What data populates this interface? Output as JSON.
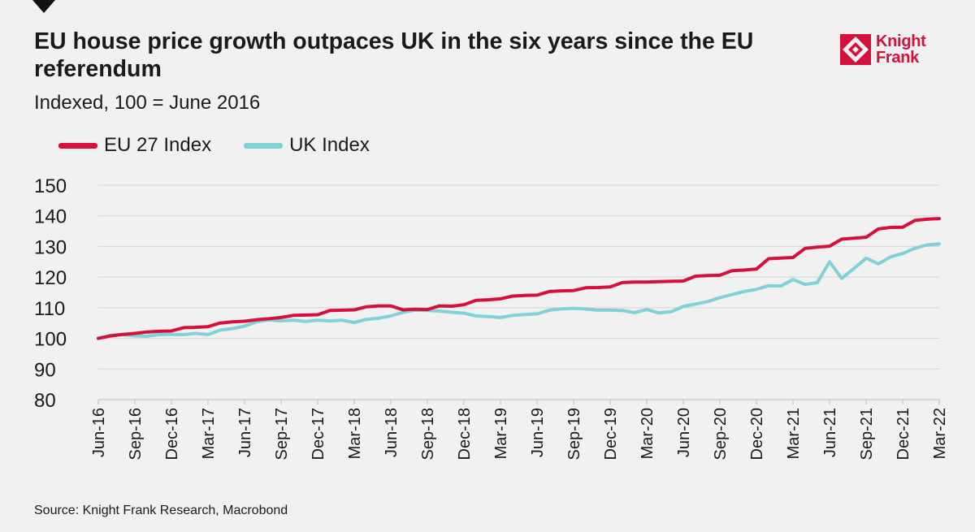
{
  "header": {
    "title": "EU house price growth outpaces UK in the six years since the EU referendum",
    "subtitle": "Indexed, 100 = June 2016"
  },
  "logo": {
    "line1": "Knight",
    "line2": "Frank",
    "color": "#d5103c"
  },
  "footer": {
    "source": "Source: Knight Frank Research, Macrobond"
  },
  "colors": {
    "background": "#f0f1f0",
    "eu": "#d5103c",
    "uk": "#7fd2d8",
    "grid": "#d4d4d4"
  },
  "chart_data": {
    "type": "line",
    "title": "EU house price growth outpaces UK in the six years since the EU referendum",
    "subtitle": "Indexed, 100 = June 2016",
    "ylim": [
      80,
      150
    ],
    "yticks": [
      80,
      90,
      100,
      110,
      120,
      130,
      140,
      150
    ],
    "grid": true,
    "legend_position": "top-left",
    "x": [
      "Jun-16",
      "Jul-16",
      "Aug-16",
      "Sep-16",
      "Oct-16",
      "Nov-16",
      "Dec-16",
      "Jan-17",
      "Feb-17",
      "Mar-17",
      "Apr-17",
      "May-17",
      "Jun-17",
      "Jul-17",
      "Aug-17",
      "Sep-17",
      "Oct-17",
      "Nov-17",
      "Dec-17",
      "Jan-18",
      "Feb-18",
      "Mar-18",
      "Apr-18",
      "May-18",
      "Jun-18",
      "Jul-18",
      "Aug-18",
      "Sep-18",
      "Oct-18",
      "Nov-18",
      "Dec-18",
      "Jan-19",
      "Feb-19",
      "Mar-19",
      "Apr-19",
      "May-19",
      "Jun-19",
      "Jul-19",
      "Aug-19",
      "Sep-19",
      "Oct-19",
      "Nov-19",
      "Dec-19",
      "Jan-20",
      "Feb-20",
      "Mar-20",
      "Apr-20",
      "May-20",
      "Jun-20",
      "Jul-20",
      "Aug-20",
      "Sep-20",
      "Oct-20",
      "Nov-20",
      "Dec-20",
      "Jan-21",
      "Feb-21",
      "Mar-21",
      "Apr-21",
      "May-21",
      "Jun-21",
      "Jul-21",
      "Aug-21",
      "Sep-21",
      "Oct-21",
      "Nov-21",
      "Dec-21",
      "Jan-22",
      "Feb-22",
      "Mar-22"
    ],
    "xtick_labels": [
      "Jun-16",
      "Sep-16",
      "Dec-16",
      "Mar-17",
      "Jun-17",
      "Sep-17",
      "Dec-17",
      "Mar-18",
      "Jun-18",
      "Sep-18",
      "Dec-18",
      "Mar-19",
      "Jun-19",
      "Sep-19",
      "Dec-19",
      "Mar-20",
      "Jun-20",
      "Sep-20",
      "Dec-20",
      "Mar-21",
      "Jun-21",
      "Sep-21",
      "Dec-21",
      "Mar-22"
    ],
    "series": [
      {
        "name": "EU 27 Index",
        "color": "#d5103c",
        "values": [
          100,
          100.8,
          101.3,
          101.6,
          102.1,
          102.3,
          102.4,
          103.5,
          103.6,
          103.8,
          105,
          105.4,
          105.6,
          106.1,
          106.4,
          106.8,
          107.5,
          107.6,
          107.7,
          109.1,
          109.2,
          109.3,
          110.3,
          110.6,
          110.6,
          109.3,
          109.5,
          109.4,
          110.6,
          110.5,
          111,
          112.4,
          112.6,
          112.9,
          113.8,
          114,
          114.1,
          115.3,
          115.5,
          115.6,
          116.5,
          116.6,
          116.8,
          118.2,
          118.4,
          118.4,
          118.5,
          118.6,
          118.7,
          120.3,
          120.5,
          120.6,
          122.1,
          122.3,
          122.6,
          126,
          126.2,
          126.4,
          129.4,
          129.8,
          130.1,
          132.4,
          132.7,
          133,
          135.7,
          136.2,
          136.3,
          138.5,
          138.9,
          139.1
        ]
      },
      {
        "name": "UK Index",
        "color": "#7fd2d8",
        "values": [
          100,
          101,
          101.2,
          100.8,
          100.7,
          101.2,
          101.3,
          101.2,
          101.6,
          101.2,
          102.7,
          103.2,
          104,
          105.4,
          106,
          105.7,
          105.9,
          105.5,
          105.9,
          105.7,
          105.9,
          105.2,
          106.2,
          106.6,
          107.3,
          108.5,
          109.2,
          109.1,
          108.9,
          108.5,
          108.2,
          107.3,
          107.1,
          106.8,
          107.5,
          107.8,
          108,
          109.2,
          109.6,
          109.8,
          109.6,
          109.2,
          109.2,
          109.1,
          108.4,
          109.4,
          108.3,
          108.7,
          110.4,
          111.2,
          112,
          113.3,
          114.3,
          115.3,
          116,
          117.2,
          117.1,
          119.2,
          117.6,
          118.2,
          125,
          119.6,
          122.8,
          126.2,
          124.3,
          126.6,
          127.7,
          129.4,
          130.5,
          130.8
        ]
      }
    ]
  }
}
